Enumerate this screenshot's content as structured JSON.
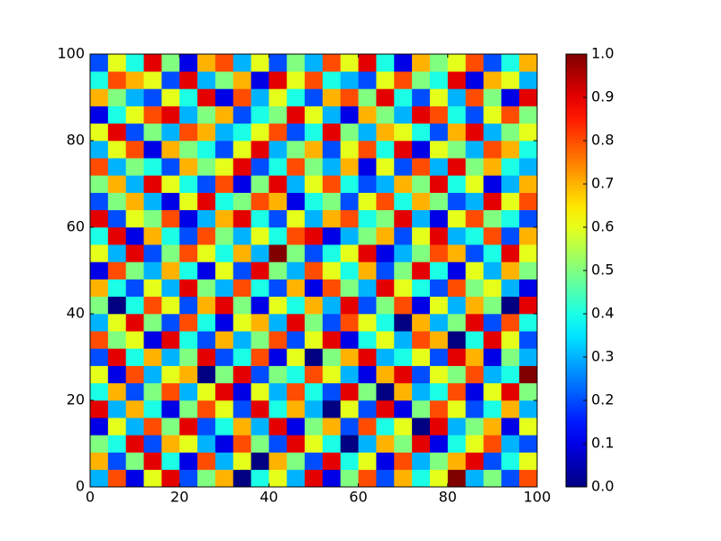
{
  "chart_data": {
    "type": "heatmap",
    "colormap": "jet",
    "xlim": [
      0,
      100
    ],
    "ylim": [
      0,
      100
    ],
    "xticks": [
      0,
      20,
      40,
      60,
      80,
      100
    ],
    "yticks": [
      0,
      20,
      40,
      60,
      80,
      100
    ],
    "clim": [
      0,
      1
    ],
    "cticks": [
      {
        "value": 0,
        "label": "0.0"
      },
      {
        "value": 0.1,
        "label": "0.1"
      },
      {
        "value": 0.2,
        "label": "0.2"
      },
      {
        "value": 0.3,
        "label": "0.3"
      },
      {
        "value": 0.4,
        "label": "0.4"
      },
      {
        "value": 0.5,
        "label": "0.5"
      },
      {
        "value": 0.6,
        "label": "0.6"
      },
      {
        "value": 0.7,
        "label": "0.7"
      },
      {
        "value": 0.8,
        "label": "0.8"
      },
      {
        "value": 0.9,
        "label": "0.9"
      },
      {
        "value": 1,
        "label": "1.0"
      }
    ],
    "values": [
      [
        0.3,
        0.8,
        0.1,
        0.6,
        0.9,
        0.2,
        0.5,
        0.7,
        0.0,
        0.4,
        0.6,
        0.3,
        0.9,
        0.1,
        0.5,
        0.8,
        0.2,
        0.7,
        0.4,
        0.6,
        1.0,
        0.3,
        0.5,
        0.2,
        0.8
      ],
      [
        0.7,
        0.2,
        0.5,
        0.9,
        0.4,
        0.1,
        0.8,
        0.3,
        0.6,
        0.0,
        0.7,
        0.5,
        0.2,
        0.9,
        0.4,
        0.6,
        0.1,
        0.8,
        0.3,
        0.5,
        0.7,
        0.9,
        0.2,
        0.4,
        0.6
      ],
      [
        0.5,
        0.4,
        0.9,
        0.2,
        0.7,
        0.6,
        0.3,
        0.1,
        0.8,
        0.5,
        0.2,
        0.9,
        0.6,
        0.4,
        0.0,
        0.3,
        0.7,
        0.5,
        0.9,
        0.1,
        0.4,
        0.6,
        0.8,
        0.3,
        0.2
      ],
      [
        0.1,
        0.6,
        0.3,
        0.8,
        0.5,
        0.9,
        0.2,
        0.4,
        0.7,
        0.3,
        0.9,
        0.1,
        0.5,
        0.7,
        0.2,
        0.8,
        0.4,
        0.6,
        0.0,
        0.9,
        0.3,
        0.5,
        0.7,
        0.1,
        0.6
      ],
      [
        0.9,
        0.3,
        0.7,
        0.4,
        0.1,
        0.5,
        0.8,
        0.6,
        0.2,
        0.9,
        0.4,
        0.7,
        0.3,
        0.0,
        0.6,
        0.2,
        0.9,
        0.1,
        0.5,
        0.8,
        0.6,
        0.2,
        0.4,
        0.7,
        0.3
      ],
      [
        0.4,
        0.7,
        0.2,
        0.5,
        0.8,
        0.3,
        0.6,
        0.9,
        0.1,
        0.6,
        0.3,
        0.8,
        0.4,
        0.2,
        0.9,
        0.5,
        0.0,
        0.7,
        0.3,
        0.4,
        0.8,
        0.1,
        0.6,
        0.9,
        0.5
      ],
      [
        0.6,
        0.1,
        0.8,
        0.3,
        0.6,
        0.7,
        0.0,
        0.5,
        0.9,
        0.2,
        0.5,
        0.4,
        0.8,
        0.6,
        0.3,
        0.1,
        0.7,
        0.9,
        0.2,
        0.6,
        0.5,
        0.8,
        0.3,
        0.4,
        1.0
      ],
      [
        0.2,
        0.9,
        0.4,
        0.7,
        0.3,
        0.5,
        0.9,
        0.2,
        0.4,
        0.8,
        0.1,
        0.6,
        0.0,
        0.5,
        0.7,
        0.9,
        0.3,
        0.4,
        0.6,
        0.2,
        0.9,
        0.7,
        0.1,
        0.5,
        0.3
      ],
      [
        0.8,
        0.5,
        0.6,
        0.1,
        0.9,
        0.4,
        0.2,
        0.7,
        0.3,
        0.5,
        0.8,
        0.2,
        0.6,
        0.9,
        0.1,
        0.4,
        0.6,
        0.3,
        0.8,
        0.7,
        0.0,
        0.4,
        0.9,
        0.6,
        0.2
      ],
      [
        0.3,
        0.6,
        0.9,
        0.5,
        0.2,
        0.8,
        0.4,
        0.1,
        0.6,
        0.7,
        0.3,
        0.9,
        0.5,
        0.2,
        0.8,
        0.6,
        0.4,
        0.0,
        0.7,
        0.3,
        0.5,
        0.9,
        0.2,
        0.8,
        0.4
      ],
      [
        0.5,
        0.0,
        0.4,
        0.8,
        0.6,
        0.2,
        0.7,
        0.9,
        0.5,
        0.1,
        0.6,
        0.4,
        0.7,
        0.3,
        0.9,
        0.2,
        0.5,
        0.8,
        0.1,
        0.6,
        0.3,
        0.7,
        0.5,
        0.0,
        0.9
      ],
      [
        0.7,
        0.4,
        0.2,
        0.6,
        0.3,
        0.9,
        0.5,
        0.3,
        0.8,
        0.4,
        0.2,
        0.7,
        0.1,
        0.8,
        0.5,
        0.3,
        0.9,
        0.6,
        0.4,
        0.2,
        0.8,
        0.5,
        0.6,
        0.3,
        0.1
      ],
      [
        0.1,
        0.8,
        0.5,
        0.3,
        0.7,
        0.4,
        0.1,
        0.6,
        0.2,
        0.9,
        0.5,
        0.3,
        0.8,
        0.6,
        0.4,
        0.7,
        0.2,
        0.5,
        0.9,
        0.4,
        0.1,
        0.6,
        0.3,
        0.7,
        0.5
      ],
      [
        0.6,
        0.3,
        0.9,
        0.2,
        0.5,
        0.8,
        0.6,
        0.4,
        0.7,
        0.3,
        1.0,
        0.5,
        0.2,
        0.4,
        0.6,
        0.9,
        0.1,
        0.3,
        0.5,
        0.8,
        0.7,
        0.2,
        0.4,
        0.9,
        0.6
      ],
      [
        0.4,
        0.9,
        0.1,
        0.7,
        0.4,
        0.2,
        0.8,
        0.5,
        0.3,
        0.6,
        0.4,
        0.8,
        0.9,
        0.1,
        0.3,
        0.5,
        0.7,
        0.2,
        0.6,
        0.9,
        0.3,
        0.4,
        0.8,
        0.2,
        0.7
      ],
      [
        0.9,
        0.2,
        0.6,
        0.5,
        0.8,
        0.1,
        0.3,
        0.7,
        0.9,
        0.4,
        0.2,
        0.6,
        0.3,
        0.7,
        0.8,
        0.4,
        0.5,
        0.9,
        0.3,
        0.1,
        0.6,
        0.8,
        0.5,
        0.4,
        0.2
      ],
      [
        0.2,
        0.5,
        0.7,
        0.3,
        0.1,
        0.6,
        0.9,
        0.4,
        0.5,
        0.8,
        0.7,
        0.1,
        0.4,
        0.5,
        0.2,
        0.6,
        0.8,
        0.4,
        0.7,
        0.5,
        0.2,
        0.3,
        0.9,
        0.6,
        0.8
      ],
      [
        0.5,
        0.7,
        0.3,
        0.9,
        0.6,
        0.4,
        0.2,
        0.8,
        0.1,
        0.5,
        0.9,
        0.3,
        0.6,
        0.8,
        0.4,
        0.2,
        0.3,
        0.7,
        0.5,
        0.9,
        0.4,
        0.6,
        0.1,
        0.3,
        0.7
      ],
      [
        0.8,
        0.3,
        0.5,
        0.4,
        0.2,
        0.7,
        0.5,
        0.6,
        0.9,
        0.2,
        0.4,
        0.8,
        0.5,
        0.3,
        0.7,
        0.1,
        0.6,
        0.2,
        0.8,
        0.3,
        0.9,
        0.5,
        0.7,
        0.4,
        0.3
      ],
      [
        0.3,
        0.6,
        0.8,
        0.1,
        0.7,
        0.5,
        0.4,
        0.2,
        0.6,
        0.9,
        0.3,
        0.5,
        0.7,
        0.2,
        0.6,
        0.8,
        0.4,
        0.9,
        0.1,
        0.6,
        0.5,
        0.3,
        0.8,
        0.7,
        0.4
      ],
      [
        0.6,
        0.9,
        0.2,
        0.5,
        0.3,
        0.8,
        0.7,
        0.3,
        0.4,
        0.6,
        0.8,
        0.2,
        0.4,
        0.9,
        0.5,
        0.3,
        0.7,
        0.6,
        0.4,
        0.2,
        0.7,
        0.9,
        0.3,
        0.5,
        0.6
      ],
      [
        0.1,
        0.4,
        0.6,
        0.8,
        0.9,
        0.3,
        0.5,
        0.7,
        0.2,
        0.4,
        0.5,
        0.9,
        0.6,
        0.3,
        0.1,
        0.7,
        0.5,
        0.3,
        0.9,
        0.8,
        0.4,
        0.2,
        0.6,
        0.8,
        0.5
      ],
      [
        0.7,
        0.5,
        0.3,
        0.2,
        0.6,
        0.4,
        0.9,
        0.1,
        0.8,
        0.3,
        0.6,
        0.4,
        0.2,
        0.7,
        0.8,
        0.5,
        0.9,
        0.4,
        0.2,
        0.6,
        0.3,
        0.8,
        0.5,
        0.1,
        0.9
      ],
      [
        0.4,
        0.8,
        0.7,
        0.6,
        0.2,
        0.9,
        0.3,
        0.5,
        0.7,
        0.1,
        0.9,
        0.6,
        0.8,
        0.4,
        0.3,
        0.2,
        0.6,
        0.8,
        0.5,
        0.4,
        0.9,
        0.1,
        0.7,
        0.6,
        0.3
      ],
      [
        0.2,
        0.6,
        0.4,
        0.9,
        0.5,
        0.1,
        0.7,
        0.8,
        0.3,
        0.6,
        0.2,
        0.5,
        0.3,
        0.8,
        0.6,
        0.9,
        0.4,
        0.1,
        0.7,
        0.5,
        0.6,
        0.8,
        0.2,
        0.4,
        0.7
      ]
    ]
  }
}
